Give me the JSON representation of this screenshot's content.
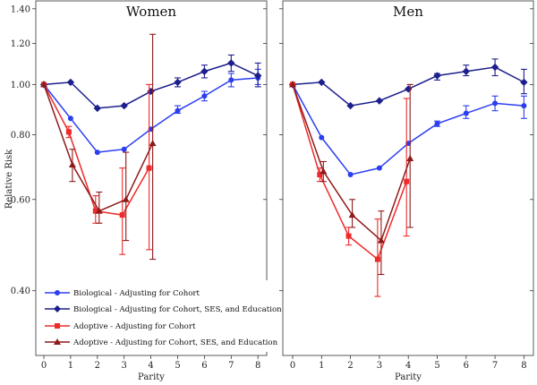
{
  "chart_data": {
    "type": "line",
    "ylabel": "Relative Risk",
    "xlabel": "Parity",
    "y_tick_labels": [
      "0.40",
      "0.60",
      "0.80",
      "1.00",
      "1.20",
      "1.40"
    ],
    "y_tick_values": [
      0.4,
      0.6,
      0.8,
      1.0,
      1.2,
      1.4
    ],
    "x_tick_labels": [
      "0",
      "1",
      "2",
      "3",
      "4",
      "5",
      "6",
      "7",
      "8"
    ],
    "y_scale": "log",
    "ylim": [
      0.3,
      1.45
    ],
    "xlim": [
      -0.3,
      8.3
    ],
    "legend": [
      {
        "label": "Biological - Adjusting for Cohort",
        "color": "#2b3ef0",
        "marker": "circle"
      },
      {
        "label": "Biological - Adjusting for Cohort, SES, and Education",
        "color": "#1c1f8c",
        "marker": "diamond"
      },
      {
        "label": "Adoptive - Adjusting for Cohort",
        "color": "#ee2a2a",
        "marker": "square"
      },
      {
        "label": "Adoptive - Adjusting for Cohort, SES, and Education",
        "color": "#8e1a1a",
        "marker": "triangle"
      }
    ],
    "panels": [
      {
        "title": "Women",
        "series": [
          {
            "name": "Biological - Adjusting for Cohort",
            "x": [
              0,
              1,
              2,
              3,
              4,
              5,
              6,
              7,
              8
            ],
            "y": [
              1.0,
              0.86,
              0.74,
              0.75,
              0.82,
              0.89,
              0.95,
              1.02,
              1.03
            ],
            "lo": [
              null,
              null,
              null,
              null,
              null,
              0.88,
              0.93,
              0.99,
              1.0
            ],
            "hi": [
              null,
              null,
              null,
              null,
              null,
              0.91,
              0.97,
              1.05,
              1.07
            ]
          },
          {
            "name": "Biological - Adjusting for Cohort, SES, and Education",
            "x": [
              0,
              1,
              2,
              3,
              4,
              5,
              6,
              7,
              8
            ],
            "y": [
              1.0,
              1.01,
              0.9,
              0.91,
              0.97,
              1.01,
              1.06,
              1.1,
              1.04
            ],
            "lo": [
              null,
              null,
              null,
              null,
              null,
              0.99,
              1.03,
              1.06,
              0.99
            ],
            "hi": [
              null,
              null,
              null,
              null,
              null,
              1.03,
              1.09,
              1.14,
              1.1
            ]
          },
          {
            "name": "Adoptive - Adjusting for Cohort",
            "x": [
              0,
              1,
              2,
              3,
              4
            ],
            "y": [
              1.0,
              0.81,
              0.57,
              0.56,
              0.69
            ],
            "lo": [
              null,
              0.79,
              0.54,
              0.47,
              0.48
            ],
            "hi": [
              null,
              0.83,
              0.61,
              0.69,
              1.0
            ]
          },
          {
            "name": "Adoptive - Adjusting for Cohort, SES, and Education",
            "x": [
              0,
              1,
              2,
              3,
              4
            ],
            "y": [
              1.0,
              0.7,
              0.57,
              0.6,
              0.77
            ],
            "lo": [
              null,
              0.65,
              0.54,
              0.5,
              0.46
            ],
            "hi": [
              null,
              0.75,
              0.62,
              0.74,
              1.25
            ]
          }
        ]
      },
      {
        "title": "Men",
        "series": [
          {
            "name": "Biological - Adjusting for Cohort",
            "x": [
              0,
              1,
              2,
              3,
              4,
              5,
              6,
              7,
              8
            ],
            "y": [
              1.0,
              0.79,
              0.67,
              0.69,
              0.77,
              0.84,
              0.88,
              0.92,
              0.91
            ],
            "lo": [
              null,
              null,
              null,
              null,
              null,
              0.83,
              0.86,
              0.89,
              0.86
            ],
            "hi": [
              null,
              null,
              null,
              null,
              null,
              0.85,
              0.91,
              0.95,
              0.95
            ]
          },
          {
            "name": "Biological - Adjusting for Cohort, SES, and Education",
            "x": [
              0,
              1,
              2,
              3,
              4,
              5,
              6,
              7,
              8
            ],
            "y": [
              1.0,
              1.01,
              0.91,
              0.93,
              0.98,
              1.04,
              1.06,
              1.08,
              1.01
            ],
            "lo": [
              null,
              null,
              null,
              null,
              null,
              1.02,
              1.04,
              1.04,
              0.96
            ],
            "hi": [
              null,
              null,
              null,
              null,
              null,
              1.05,
              1.09,
              1.12,
              1.07
            ]
          },
          {
            "name": "Adoptive - Adjusting for Cohort",
            "x": [
              0,
              1,
              2,
              3,
              4
            ],
            "y": [
              1.0,
              0.67,
              0.51,
              0.46,
              0.65
            ],
            "lo": [
              null,
              0.65,
              0.49,
              0.39,
              0.51
            ],
            "hi": [
              null,
              0.69,
              0.53,
              0.55,
              0.94
            ]
          },
          {
            "name": "Adoptive - Adjusting for Cohort, SES, and Education",
            "x": [
              0,
              1,
              2,
              3,
              4
            ],
            "y": [
              1.0,
              0.68,
              0.56,
              0.5,
              0.72
            ],
            "lo": [
              null,
              0.65,
              0.53,
              0.43,
              0.53
            ],
            "hi": [
              null,
              0.71,
              0.6,
              0.57,
              1.0
            ]
          }
        ]
      }
    ]
  }
}
